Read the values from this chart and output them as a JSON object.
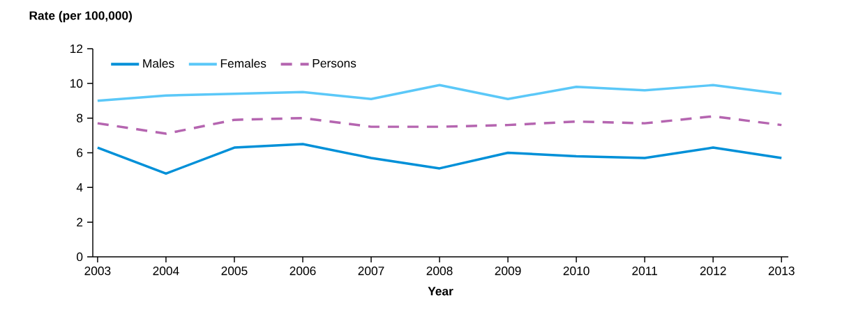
{
  "chart_data": {
    "type": "line",
    "ylabel": "Rate (per 100,000)",
    "xlabel": "Year",
    "x": [
      2003,
      2004,
      2005,
      2006,
      2007,
      2008,
      2009,
      2010,
      2011,
      2012,
      2013
    ],
    "series": [
      {
        "name": "Males",
        "color": "#0090d8",
        "line_style": "solid",
        "values": [
          6.3,
          4.8,
          6.3,
          6.5,
          5.7,
          5.1,
          6.0,
          5.8,
          5.7,
          6.3,
          5.7
        ]
      },
      {
        "name": "Females",
        "color": "#5bc8f8",
        "line_style": "solid",
        "values": [
          9.0,
          9.3,
          9.4,
          9.5,
          9.1,
          9.9,
          9.1,
          9.8,
          9.6,
          9.9,
          9.4
        ]
      },
      {
        "name": "Persons",
        "color": "#b565b0",
        "line_style": "dashed",
        "values": [
          7.7,
          7.1,
          7.9,
          8.0,
          7.5,
          7.5,
          7.6,
          7.8,
          7.7,
          8.1,
          7.6
        ]
      }
    ],
    "xlim": [
      2002.93,
      2013.1
    ],
    "ylim": [
      0,
      12
    ],
    "xticks": [
      2003,
      2004,
      2005,
      2006,
      2007,
      2008,
      2009,
      2010,
      2011,
      2012,
      2013
    ],
    "yticks": [
      0,
      2,
      4,
      6,
      8,
      10,
      12
    ],
    "grid": false,
    "legend": "top left"
  }
}
